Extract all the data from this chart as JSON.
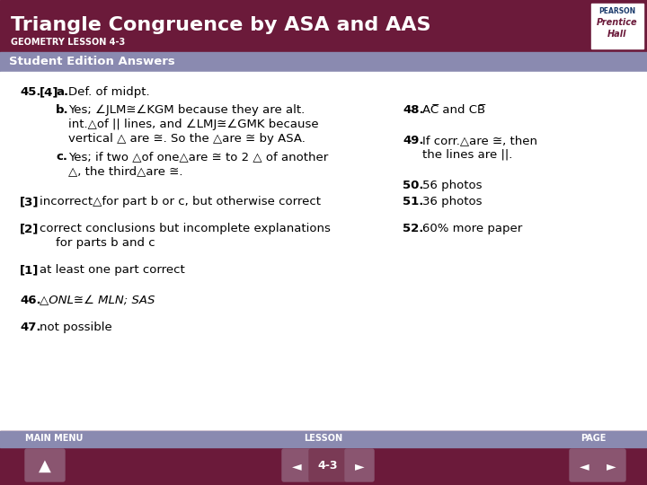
{
  "title": "Triangle Congruence by ASA and AAS",
  "subtitle": "GEOMETRY LESSON 4-3",
  "section_header": "Student Edition Answers",
  "header_bg": "#6b1a3a",
  "section_bg": "#8a8ab0",
  "footer_bg": "#6b1a3a",
  "footer_nav_bg": "#8a8ab0",
  "body_bg": "#ffffff",
  "title_color": "#ffffff",
  "subtitle_color": "#ffffff",
  "section_color": "#ffffff",
  "body_color": "#000000",
  "nav_button_color": "#8a5570",
  "nav_button_dark": "#7a3a55"
}
